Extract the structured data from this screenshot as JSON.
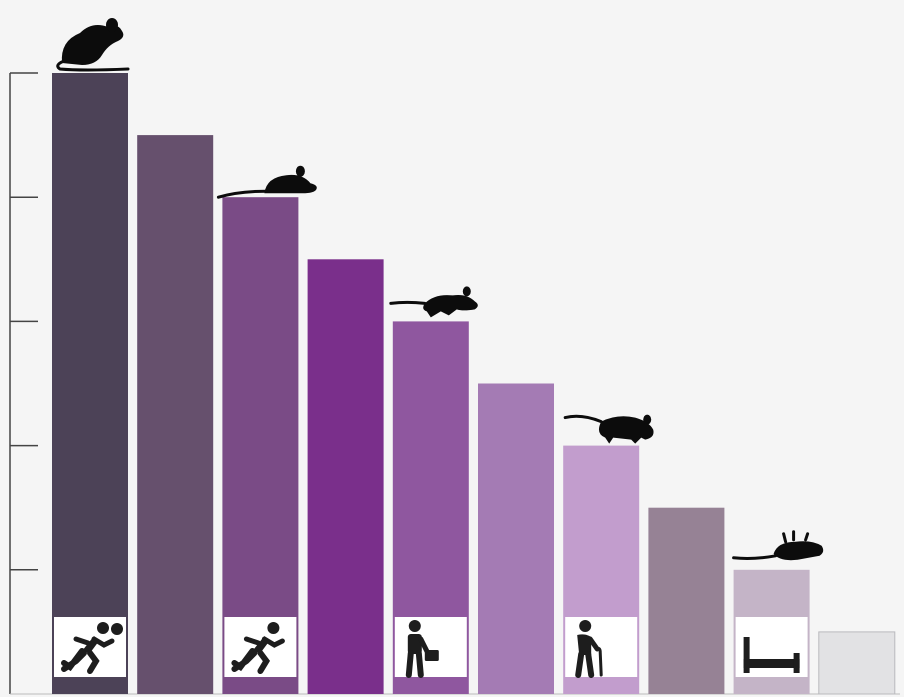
{
  "chart_data": {
    "type": "bar",
    "title": "",
    "xlabel": "",
    "ylabel": "",
    "ylim": [
      0,
      5
    ],
    "yticks": [
      1,
      2,
      3,
      4,
      5
    ],
    "tick_labels_shown": false,
    "grid": false,
    "legend": "none",
    "categories": [
      "",
      "",
      "",
      "",
      "",
      "",
      "",
      "",
      "",
      ""
    ],
    "values": [
      5.0,
      4.5,
      4.0,
      3.5,
      3.0,
      2.5,
      2.0,
      1.5,
      1.0,
      0.5
    ],
    "colors": [
      "#4c4257",
      "#66506d",
      "#7a4b86",
      "#7a2f8b",
      "#8f579f",
      "#a47bb4",
      "#c29dcd",
      "#968295",
      "#c4b4c7",
      "#e2e2e4"
    ],
    "background": "#f5f5f5",
    "bar_icons": [
      {
        "bar": 0,
        "icon": "runner-ball-icon"
      },
      {
        "bar": 2,
        "icon": "runner-icon"
      },
      {
        "bar": 4,
        "icon": "person-briefcase-icon"
      },
      {
        "bar": 6,
        "icon": "elderly-cane-icon"
      },
      {
        "bar": 8,
        "icon": "bed-icon"
      }
    ],
    "top_icons": [
      {
        "bar": 0,
        "icon": "mouse-sitting-icon"
      },
      {
        "bar": 2,
        "icon": "mouse-crouching-icon"
      },
      {
        "bar": 4,
        "icon": "mouse-running-icon"
      },
      {
        "bar": 6,
        "icon": "mouse-walking-icon"
      },
      {
        "bar": 8,
        "icon": "mouse-lying-icon"
      }
    ]
  }
}
